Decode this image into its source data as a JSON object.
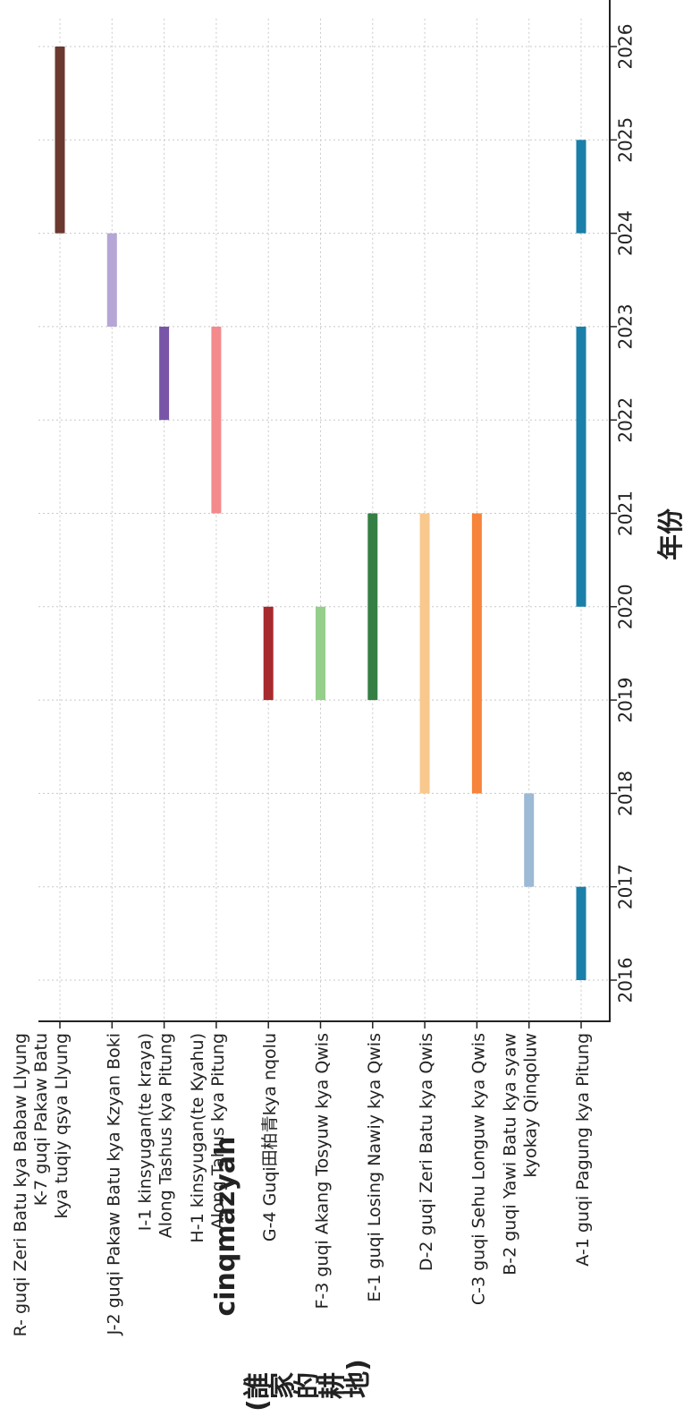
{
  "chart_data": {
    "type": "gantt",
    "ylabel_main": "cinqmazyah",
    "ylabel_sub": [
      "(誰",
      "家",
      "的",
      "耕",
      "地)"
    ],
    "xlabel": "年份",
    "xlim": [
      2015.75,
      2026.3
    ],
    "ticks": [
      2016,
      2017,
      2018,
      2019,
      2020,
      2021,
      2022,
      2023,
      2024,
      2025,
      2026
    ],
    "grid": true,
    "rows": [
      {
        "label": [
          "A-1 guqi Pagung kya Pitung"
        ],
        "bars": [
          {
            "start": 2016,
            "end": 2017,
            "color": "#1a7fa9"
          },
          {
            "start": 2020,
            "end": 2023,
            "color": "#1a7fa9"
          },
          {
            "start": 2024,
            "end": 2025,
            "color": "#1a7fa9"
          }
        ]
      },
      {
        "label": [
          "B-2 guqi Yawi Batu kya syaw",
          "kyokay Qinqoluw"
        ],
        "bars": [
          {
            "start": 2017,
            "end": 2018,
            "color": "#9cbad5"
          }
        ]
      },
      {
        "label": [
          "C-3 guqi Sehu Longuw kya Qwis"
        ],
        "bars": [
          {
            "start": 2018,
            "end": 2021,
            "color": "#f7843b"
          }
        ]
      },
      {
        "label": [
          "D-2 guqi Zeri Batu kya Qwis"
        ],
        "bars": [
          {
            "start": 2018,
            "end": 2021,
            "color": "#f9c88d"
          }
        ]
      },
      {
        "label": [
          "E-1 guqi Losing Nawiy kya Qwis"
        ],
        "bars": [
          {
            "start": 2019,
            "end": 2021,
            "color": "#357f45"
          }
        ]
      },
      {
        "label": [
          "F-3 guqi Akang Tosyuw kya Qwis"
        ],
        "bars": [
          {
            "start": 2019,
            "end": 2020,
            "color": "#95cf8b"
          }
        ]
      },
      {
        "label": [
          "G-4 Guqi田柏青kya nqolu"
        ],
        "bars": [
          {
            "start": 2019,
            "end": 2020,
            "color": "#a72a2e"
          }
        ]
      },
      {
        "label": [
          "H-1 kinsyugan(te Kyahu)",
          "Along Tahus kya Pitung"
        ],
        "bars": [
          {
            "start": 2021,
            "end": 2023,
            "color": "#f48a8c"
          }
        ]
      },
      {
        "label": [
          "I-1 kinsyugan(te kraya)",
          "Along Tashus kya Pitung"
        ],
        "bars": [
          {
            "start": 2022,
            "end": 2023,
            "color": "#7955a8"
          }
        ]
      },
      {
        "label": [
          "J-2 guqi Pakaw Batu kya Kzyan Boki"
        ],
        "bars": [
          {
            "start": 2023,
            "end": 2024,
            "color": "#b6a6d6"
          }
        ]
      },
      {
        "label": [
          "R- guqi Zeri Batu kya Babaw Llyung",
          "K-7 guqi Pakaw Batu",
          "kya tuqiy qsya Llyung"
        ],
        "bars": [
          {
            "start": 2024,
            "end": 2026,
            "color": "#6b392f"
          }
        ]
      }
    ]
  }
}
